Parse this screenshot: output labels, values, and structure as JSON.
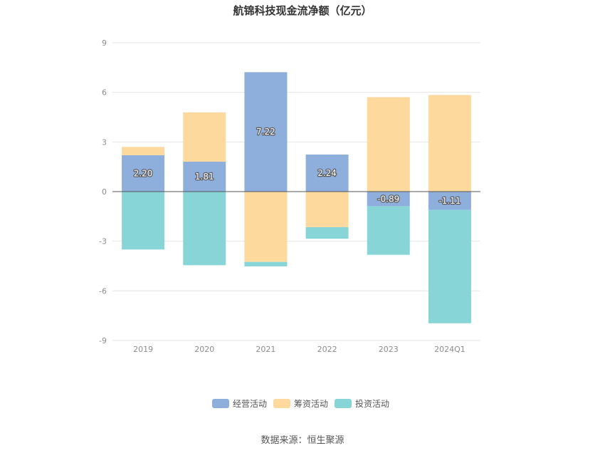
{
  "chart_data": {
    "type": "bar",
    "stacked": true,
    "title": "航锦科技现金流净额（亿元）",
    "categories": [
      "2019",
      "2020",
      "2021",
      "2022",
      "2023",
      "2024Q1"
    ],
    "series": [
      {
        "name": "经营活动",
        "color": "#8eaedc",
        "values": [
          2.2,
          1.81,
          7.22,
          2.24,
          -0.89,
          -1.11
        ],
        "labels": [
          "2.20",
          "1.81",
          "7.22",
          "2.24",
          "-0.89",
          "-1.11"
        ]
      },
      {
        "name": "筹资活动",
        "color": "#fed99e",
        "values": [
          0.5,
          2.98,
          -4.25,
          -2.15,
          5.71,
          5.84
        ]
      },
      {
        "name": "投资活动",
        "color": "#88d5d8",
        "values": [
          -3.5,
          -4.45,
          -0.27,
          -0.7,
          -2.93,
          -6.85
        ]
      }
    ],
    "ylim": [
      -9,
      9
    ],
    "yticks": [
      9,
      6,
      3,
      0,
      -3,
      -6,
      -9
    ],
    "grid": true,
    "legend_position": "bottom"
  },
  "source_text": "数据来源：恒生聚源"
}
